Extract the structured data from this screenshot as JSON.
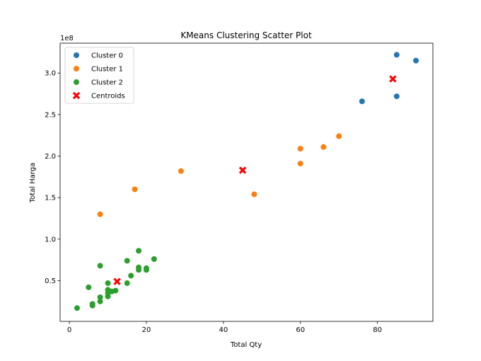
{
  "chart_data": {
    "type": "scatter",
    "title": "KMeans Clustering Scatter Plot",
    "xlabel": "Total Qty",
    "ylabel": "Total Harga",
    "y_offset_text": "1e8",
    "xlim": [
      -2.4,
      94.4
    ],
    "ylim": [
      0.01,
      3.36
    ],
    "xticks": [
      0,
      20,
      40,
      60,
      80
    ],
    "xtick_labels": [
      "0",
      "20",
      "40",
      "60",
      "80"
    ],
    "yticks": [
      0.5,
      1.0,
      1.5,
      2.0,
      2.5,
      3.0
    ],
    "ytick_labels": [
      "0.5",
      "1.0",
      "1.5",
      "2.0",
      "2.5",
      "3.0"
    ],
    "y_units": "x 1e8",
    "grid": false,
    "legend_position": "upper-left",
    "series": [
      {
        "name": "Cluster 0",
        "color": "#1f77b4",
        "marker": "circle",
        "points": [
          {
            "x": 76,
            "y": 2.66
          },
          {
            "x": 85,
            "y": 3.22
          },
          {
            "x": 85,
            "y": 2.72
          },
          {
            "x": 90,
            "y": 3.15
          }
        ]
      },
      {
        "name": "Cluster 1",
        "color": "#ff7f0e",
        "marker": "circle",
        "points": [
          {
            "x": 8,
            "y": 1.3
          },
          {
            "x": 17,
            "y": 1.6
          },
          {
            "x": 29,
            "y": 1.82
          },
          {
            "x": 48,
            "y": 1.54
          },
          {
            "x": 60,
            "y": 2.09
          },
          {
            "x": 60,
            "y": 1.91
          },
          {
            "x": 66,
            "y": 2.11
          },
          {
            "x": 70,
            "y": 2.24
          }
        ]
      },
      {
        "name": "Cluster 2",
        "color": "#2ca02c",
        "marker": "circle",
        "points": [
          {
            "x": 2,
            "y": 0.17
          },
          {
            "x": 5,
            "y": 0.42
          },
          {
            "x": 6,
            "y": 0.22
          },
          {
            "x": 6,
            "y": 0.2
          },
          {
            "x": 8,
            "y": 0.68
          },
          {
            "x": 8,
            "y": 0.3
          },
          {
            "x": 8,
            "y": 0.25
          },
          {
            "x": 10,
            "y": 0.47
          },
          {
            "x": 10,
            "y": 0.39
          },
          {
            "x": 10,
            "y": 0.35
          },
          {
            "x": 10,
            "y": 0.31
          },
          {
            "x": 11,
            "y": 0.37
          },
          {
            "x": 12,
            "y": 0.38
          },
          {
            "x": 15,
            "y": 0.74
          },
          {
            "x": 15,
            "y": 0.47
          },
          {
            "x": 16,
            "y": 0.56
          },
          {
            "x": 18,
            "y": 0.86
          },
          {
            "x": 18,
            "y": 0.66
          },
          {
            "x": 18,
            "y": 0.63
          },
          {
            "x": 20,
            "y": 0.65
          },
          {
            "x": 20,
            "y": 0.63
          },
          {
            "x": 22,
            "y": 0.76
          }
        ]
      },
      {
        "name": "Centroids",
        "color": "#ff0000",
        "marker": "x",
        "points": [
          {
            "x": 84,
            "y": 2.93
          },
          {
            "x": 45,
            "y": 1.83
          },
          {
            "x": 12.4,
            "y": 0.49
          }
        ]
      }
    ]
  }
}
